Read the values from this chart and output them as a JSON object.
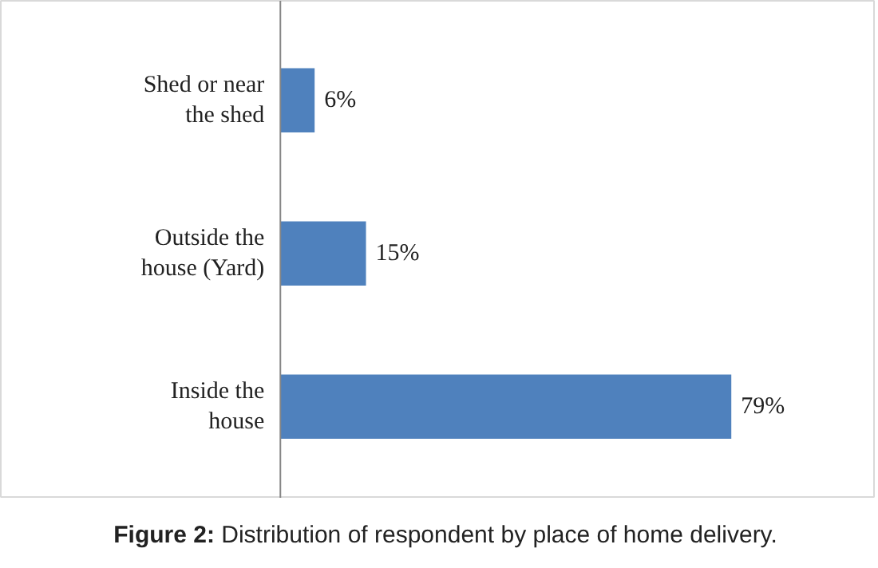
{
  "chart_data": {
    "type": "bar",
    "orientation": "horizontal",
    "categories": [
      "Shed or near the shed",
      "Outside the house (Yard)",
      "Inside the house"
    ],
    "values": [
      6,
      15,
      79
    ],
    "value_labels": [
      "6%",
      "15%",
      "79%"
    ],
    "color": "#4f81bd",
    "grid": false,
    "annotations": [
      "Figure 2: Distribution of respondent by place of home delivery."
    ]
  }
}
